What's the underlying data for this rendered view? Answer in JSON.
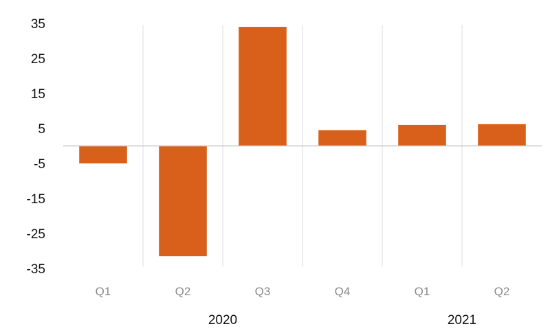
{
  "chart_data": {
    "type": "bar",
    "categories": [
      "Q1",
      "Q2",
      "Q3",
      "Q4",
      "Q1",
      "Q2"
    ],
    "groups": [
      {
        "label": "2020",
        "categories": [
          "Q1",
          "Q2",
          "Q3",
          "Q4"
        ]
      },
      {
        "label": "2021",
        "categories": [
          "Q1",
          "Q2"
        ]
      }
    ],
    "values": [
      -5,
      -31.5,
      34,
      4.5,
      6,
      6.2
    ],
    "yticks": [
      "35",
      "25",
      "15",
      "5",
      "-5",
      "-15",
      "-25",
      "-35"
    ],
    "ylim": [
      -35,
      35
    ],
    "grid": "vertical separators between categories",
    "bar_color": "#d9601a",
    "axis_color": "#c8c8c8",
    "title": "",
    "xlabel": "",
    "ylabel": ""
  }
}
